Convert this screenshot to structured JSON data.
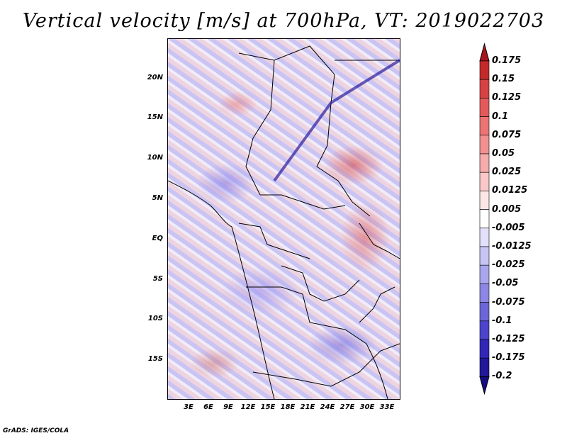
{
  "title": "Vertical velocity [m/s] at 700hPa, VT: 2019022703",
  "footer": "GrADS: IGES/COLA",
  "map": {
    "variable": "Vertical velocity",
    "units": "m/s",
    "level": "700hPa",
    "valid_time": "2019022703",
    "lat_labels": [
      "20N",
      "15N",
      "10N",
      "5N",
      "EQ",
      "5S",
      "10S",
      "15S"
    ],
    "lon_labels": [
      "3E",
      "6E",
      "9E",
      "12E",
      "15E",
      "18E",
      "21E",
      "24E",
      "27E",
      "30E",
      "33E"
    ]
  },
  "colorbar": {
    "labels": [
      "0.175",
      "0.15",
      "0.125",
      "0.1",
      "0.075",
      "0.05",
      "0.025",
      "0.0125",
      "0.005",
      "-0.005",
      "-0.0125",
      "-0.025",
      "-0.05",
      "-0.075",
      "-0.1",
      "-0.125",
      "-0.175",
      "-0.2"
    ],
    "colors": [
      "#a8141e",
      "#c42a2a",
      "#d84242",
      "#e45a5a",
      "#ec7474",
      "#f29090",
      "#f6acac",
      "#fac8c8",
      "#fde6e6",
      "#ffffff",
      "#e2e0fa",
      "#c8c4f4",
      "#aaa6ee",
      "#8c86e4",
      "#6c66da",
      "#4c44cc",
      "#3228b8",
      "#22189c",
      "#140c80"
    ]
  }
}
